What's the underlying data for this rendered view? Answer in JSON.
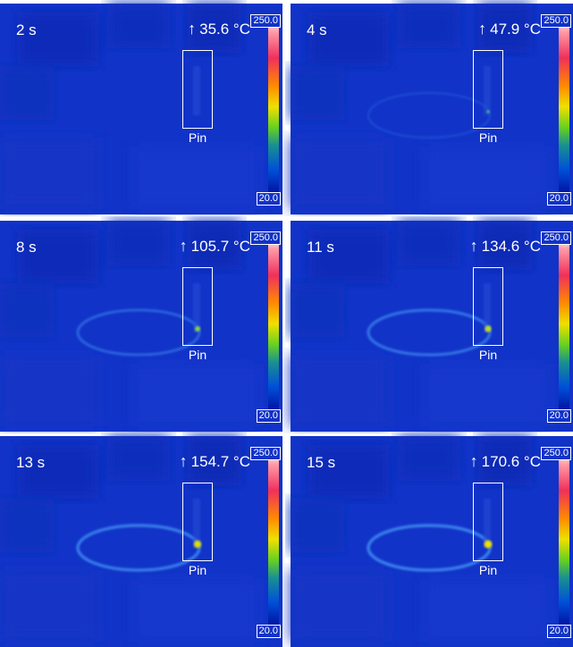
{
  "panels": [
    {
      "time": "2 s",
      "arrow": "↑",
      "max_temp": "35.6 °C",
      "scale_max": "250.0",
      "scale_min": "20.0",
      "roi_label": "Pin",
      "hotspot": 0.0,
      "ring": 0.0
    },
    {
      "time": "4 s",
      "arrow": "↑",
      "max_temp": "47.9 °C",
      "scale_max": "250.0",
      "scale_min": "20.0",
      "roi_label": "Pin",
      "hotspot": 0.1,
      "ring": 0.15
    },
    {
      "time": "8 s",
      "arrow": "↑",
      "max_temp": "105.7 °C",
      "scale_max": "250.0",
      "scale_min": "20.0",
      "roi_label": "Pin",
      "hotspot": 0.5,
      "ring": 0.6
    },
    {
      "time": "11 s",
      "arrow": "↑",
      "max_temp": "134.6 °C",
      "scale_max": "250.0",
      "scale_min": "20.0",
      "roi_label": "Pin",
      "hotspot": 0.75,
      "ring": 0.8
    },
    {
      "time": "13 s",
      "arrow": "↑",
      "max_temp": "154.7 °C",
      "scale_max": "250.0",
      "scale_min": "20.0",
      "roi_label": "Pin",
      "hotspot": 0.9,
      "ring": 0.95
    },
    {
      "time": "15 s",
      "arrow": "↑",
      "max_temp": "170.6 °C",
      "scale_max": "250.0",
      "scale_min": "20.0",
      "roi_label": "Pin",
      "hotspot": 1.0,
      "ring": 1.0
    }
  ],
  "colors": {
    "background": "#1133c8",
    "ring": "#3f8af0",
    "hotspot_low": "#2ad080",
    "hotspot_high": "#f0e000"
  }
}
